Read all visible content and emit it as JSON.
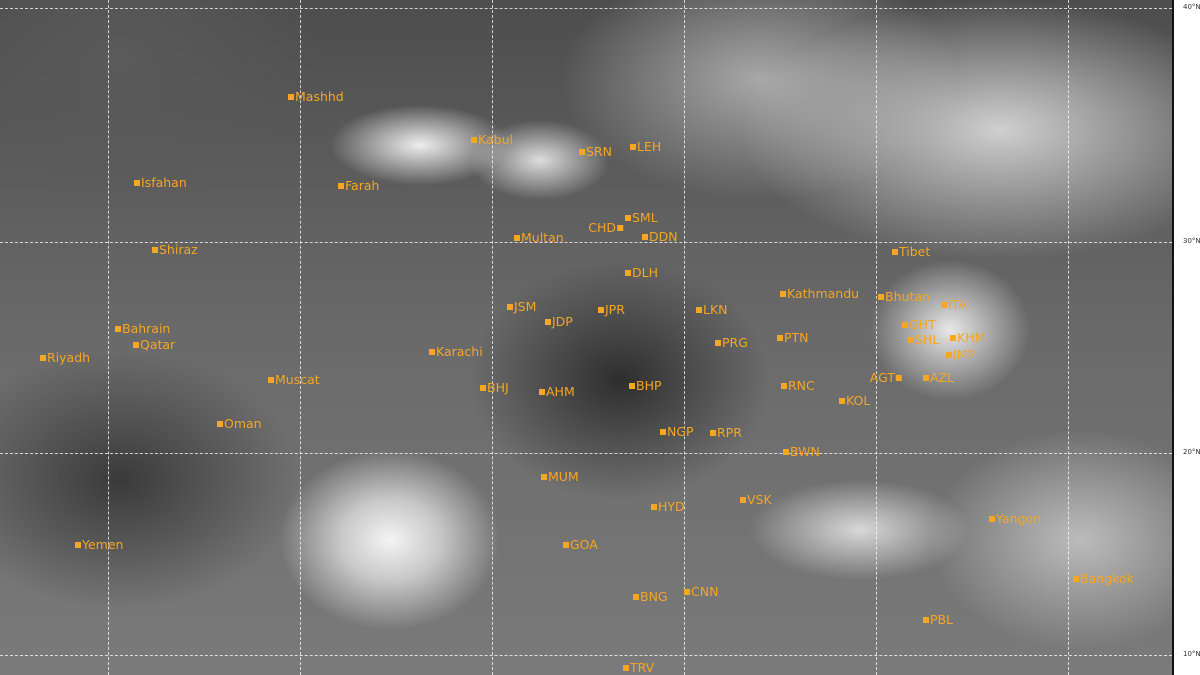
{
  "map": {
    "marker_color": "#f5a623",
    "latitude_labels": [
      "40°N",
      "30°N",
      "20°N",
      "10°N"
    ],
    "cities": [
      "Mashhd",
      "Isfahan",
      "Farah",
      "Shiraz",
      "Kabul",
      "SRN",
      "LEH",
      "SML",
      "CHD",
      "DDN",
      "Multan",
      "DLH",
      "JSM",
      "JDP",
      "JPR",
      "LKN",
      "PRG",
      "PTN",
      "Kathmandu",
      "Tibet",
      "Bhutan",
      "ITA",
      "GHT",
      "SHL",
      "KHM",
      "IMP",
      "AGT",
      "AZL",
      "RNC",
      "KOL",
      "Bahrain",
      "Qatar",
      "Riyadh",
      "Karachi",
      "Muscat",
      "Oman",
      "BHJ",
      "AHM",
      "BHP",
      "NGP",
      "RPR",
      "BWN",
      "MUM",
      "HYD",
      "VSK",
      "GOA",
      "BNG",
      "CNN",
      "Yemen",
      "Yangon",
      "Bangkok",
      "PBL",
      "TRV"
    ]
  }
}
